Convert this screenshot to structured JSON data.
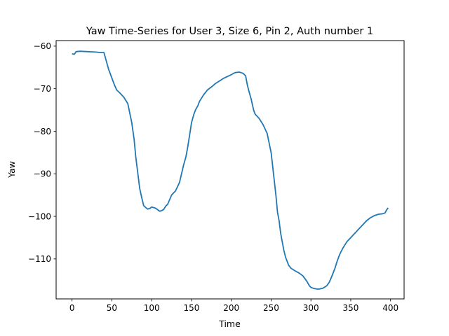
{
  "chart_data": {
    "type": "line",
    "title": "Yaw Time-Series for User 3, Size 6, Pin 2, Auth number 1",
    "xlabel": "Time",
    "ylabel": "Yaw",
    "xlim": [
      -20,
      417
    ],
    "ylim": [
      -119.4,
      -58.7
    ],
    "xticks": [
      0,
      50,
      100,
      150,
      200,
      250,
      300,
      350,
      400
    ],
    "yticks": [
      -60,
      -70,
      -80,
      -90,
      -100,
      -110
    ],
    "xtick_labels": [
      "0",
      "50",
      "100",
      "150",
      "200",
      "250",
      "300",
      "350",
      "400"
    ],
    "ytick_labels": [
      "−60",
      "−70",
      "−80",
      "−90",
      "−100",
      "−110"
    ],
    "grid": false,
    "series": [
      {
        "name": "Yaw",
        "color": "#1f77b4",
        "x": [
          0,
          3,
          5,
          10,
          20,
          30,
          35,
          40,
          43,
          46,
          50,
          53,
          56,
          60,
          65,
          70,
          75,
          78,
          80,
          83,
          85,
          88,
          90,
          93,
          95,
          98,
          100,
          105,
          110,
          112,
          115,
          118,
          120,
          125,
          130,
          135,
          140,
          143,
          145,
          148,
          150,
          153,
          155,
          158,
          160,
          165,
          170,
          175,
          180,
          190,
          200,
          205,
          210,
          215,
          218,
          220,
          222,
          225,
          228,
          230,
          233,
          235,
          240,
          245,
          250,
          253,
          256,
          258,
          260,
          262,
          264,
          266,
          268,
          270,
          272,
          275,
          280,
          285,
          290,
          295,
          298,
          300,
          303,
          305,
          308,
          310,
          315,
          320,
          323,
          326,
          330,
          333,
          336,
          340,
          345,
          350,
          355,
          360,
          365,
          370,
          375,
          380,
          385,
          390,
          393,
          395,
          397
        ],
        "y": [
          -61.8,
          -61.9,
          -61.3,
          -61.2,
          -61.3,
          -61.4,
          -61.5,
          -61.5,
          -63.5,
          -65.5,
          -67.5,
          -69.0,
          -70.3,
          -71.0,
          -72.0,
          -73.5,
          -78.0,
          -82.0,
          -86.0,
          -90.5,
          -93.5,
          -96.0,
          -97.5,
          -98.0,
          -98.3,
          -98.1,
          -97.8,
          -98.1,
          -98.8,
          -98.7,
          -98.4,
          -97.5,
          -97.2,
          -95.0,
          -94.0,
          -92.0,
          -88.0,
          -86.0,
          -84.0,
          -80.5,
          -78.0,
          -76.0,
          -75.0,
          -74.0,
          -73.0,
          -71.5,
          -70.3,
          -69.6,
          -68.8,
          -67.6,
          -66.7,
          -66.2,
          -66.1,
          -66.4,
          -67.0,
          -69.0,
          -70.5,
          -72.5,
          -75.0,
          -76.0,
          -76.6,
          -77.0,
          -78.5,
          -80.5,
          -85.0,
          -90.0,
          -95.0,
          -99.0,
          -101.0,
          -104.0,
          -106.0,
          -108.0,
          -109.5,
          -110.5,
          -111.5,
          -112.2,
          -112.8,
          -113.3,
          -114.0,
          -115.3,
          -116.3,
          -116.7,
          -116.9,
          -117.0,
          -117.1,
          -117.1,
          -116.9,
          -116.3,
          -115.5,
          -114.2,
          -112.3,
          -110.5,
          -109.0,
          -107.5,
          -106.0,
          -105.0,
          -104.0,
          -103.0,
          -102.0,
          -101.0,
          -100.3,
          -99.8,
          -99.5,
          -99.4,
          -99.2,
          -98.5,
          -98.0
        ]
      }
    ]
  }
}
